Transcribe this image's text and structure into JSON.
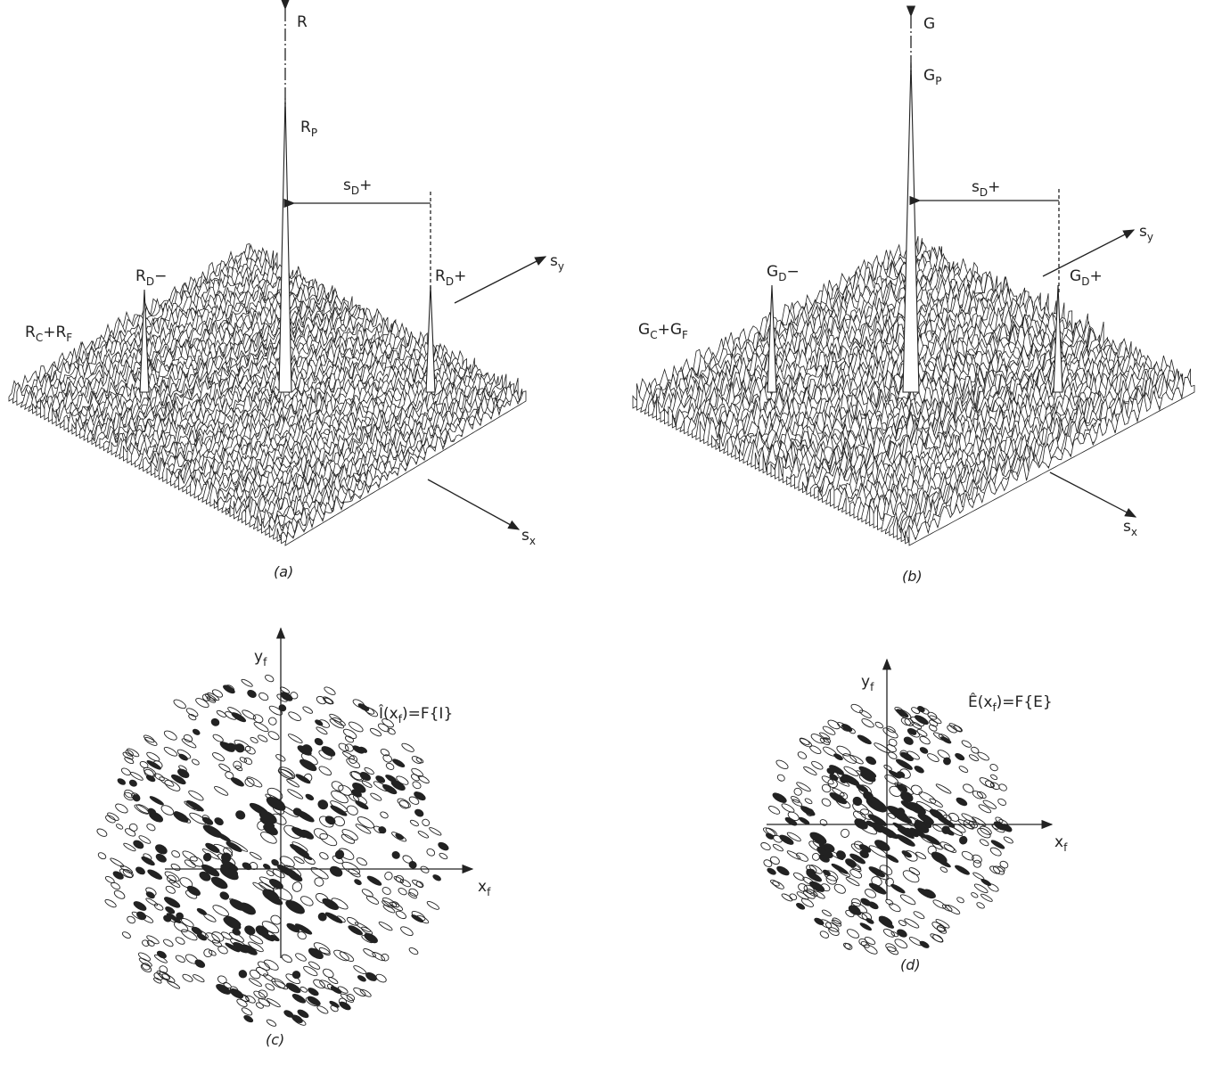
{
  "panel_a": {
    "caption": "(a)",
    "axis": {
      "main": "R"
    },
    "peak": {
      "main": "R",
      "sub": "P"
    },
    "separation": {
      "main": "s",
      "sub": "D",
      "tail": "+"
    },
    "minus": {
      "main": "R",
      "sub": "D",
      "tail": "−"
    },
    "plus": {
      "main": "R",
      "sub": "D",
      "tail": "+"
    },
    "sy": {
      "main": "s",
      "sub": "y"
    },
    "sx": {
      "main": "s",
      "sub": "x"
    },
    "background": {
      "main": "R",
      "sub": "C",
      "tail": "+R",
      "sub2": "F"
    }
  },
  "panel_b": {
    "caption": "(b)",
    "axis": {
      "main": "G"
    },
    "peak": {
      "main": "G",
      "sub": "P"
    },
    "separation": {
      "main": "s",
      "sub": "D",
      "tail": "+"
    },
    "minus": {
      "main": "G",
      "sub": "D",
      "tail": "−"
    },
    "plus": {
      "main": "G",
      "sub": "D",
      "tail": "+"
    },
    "sy": {
      "main": "s",
      "sub": "y"
    },
    "sx": {
      "main": "s",
      "sub": "x"
    },
    "background": {
      "main": "G",
      "sub": "C",
      "tail": "+G",
      "sub2": "F"
    }
  },
  "panel_c": {
    "caption": "(c)",
    "yaxis": {
      "main": "y",
      "sub": "f"
    },
    "xaxis": {
      "main": "x",
      "sub": "f"
    },
    "formula": {
      "main": "Î(x",
      "sub": "f",
      "tail": ")=F{I}"
    }
  },
  "panel_d": {
    "caption": "(d)",
    "yaxis": {
      "main": "y",
      "sub": "f"
    },
    "xaxis": {
      "main": "x",
      "sub": "f"
    },
    "formula": {
      "main": "Ê(x",
      "sub": "f",
      "tail": ")=F{E}"
    }
  }
}
